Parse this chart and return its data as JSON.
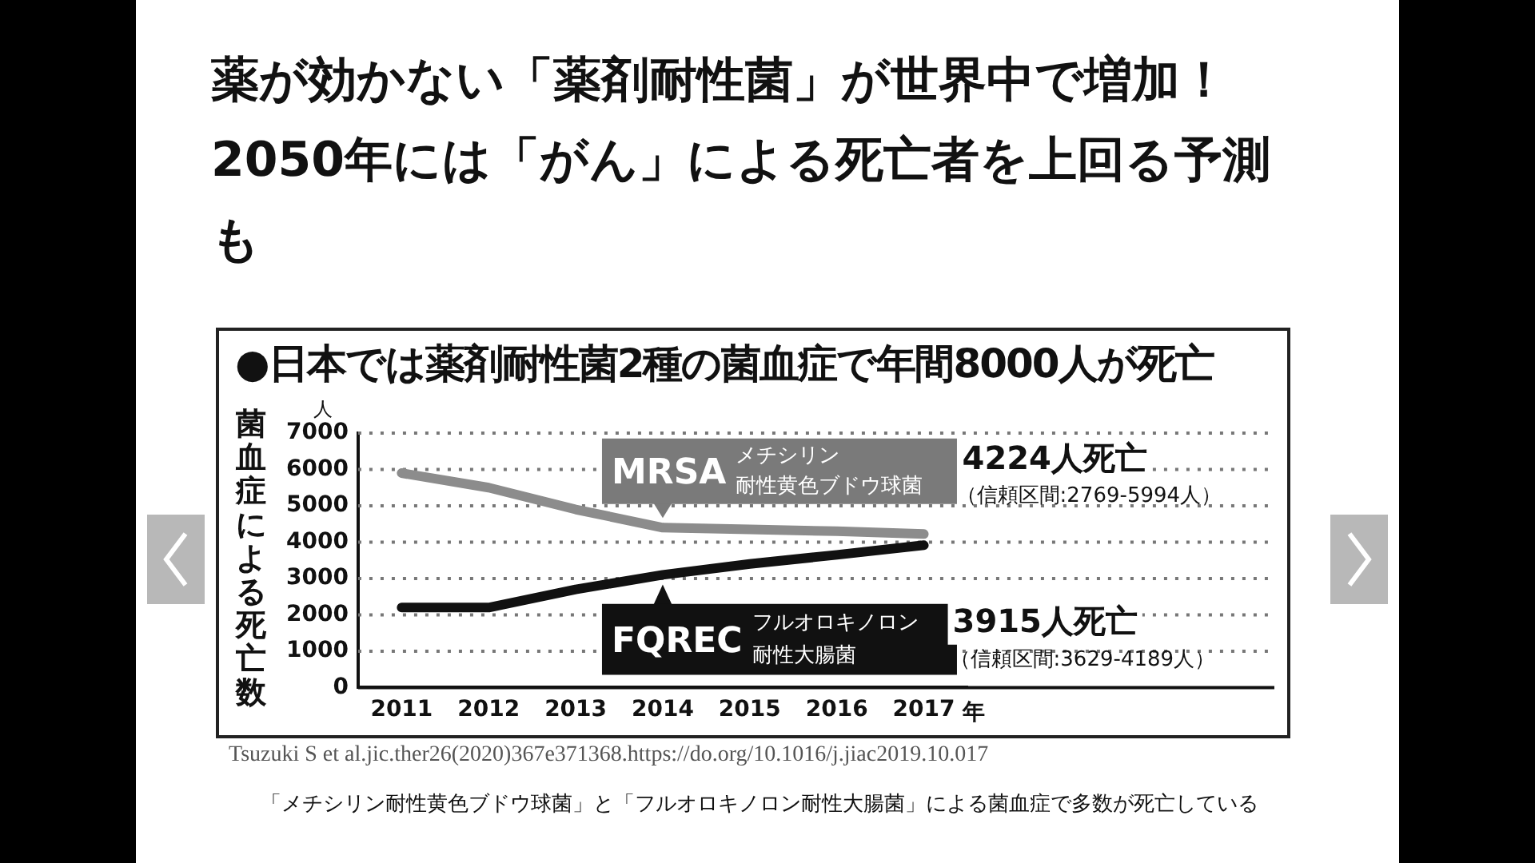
{
  "chart_data": {
    "type": "line",
    "title": "薬が効かない「薬剤耐性菌」が世界中で増加！2050年には「がん」による死亡者を上回る予測も",
    "subtitle": "●日本では薬剤耐性菌2種の菌血症で年間8000人が死亡",
    "ylabel": "菌血症による死亡数",
    "xlabel": "年",
    "categories": [
      "2011",
      "2012",
      "2013",
      "2014",
      "2015",
      "2016",
      "2017"
    ],
    "series": [
      {
        "name": "MRSA",
        "color": "#8c8c8c",
        "values": [
          5900,
          5500,
          4900,
          4400,
          4350,
          4300,
          4224
        ]
      },
      {
        "name": "FQREC",
        "color": "#111111",
        "values": [
          2200,
          2200,
          2700,
          3100,
          3400,
          3650,
          3915
        ]
      }
    ],
    "ylim": [
      0,
      7000
    ],
    "yticks": [
      0,
      1000,
      2000,
      3000,
      4000,
      5000,
      6000,
      7000
    ],
    "grid": "y",
    "annotations": [
      "人",
      "メチシリン",
      "耐性黄色ブドウ球菌",
      "4224人死亡",
      "（信頼区間:2769-5994人）",
      "フルオロキノロン",
      "耐性大腸菌",
      "3915人死亡",
      "（信頼区間:3629-4189人）",
      "Tsuzuki S et al.jic.ther26(2020)367e371368.https://do.org/10.1016/j.jiac2019.10.017",
      "「メチシリン耐性黄色ブドウ球菌」と「フルオロキノロン耐性大腸菌」による菌血症で多数が死亡している"
    ]
  }
}
